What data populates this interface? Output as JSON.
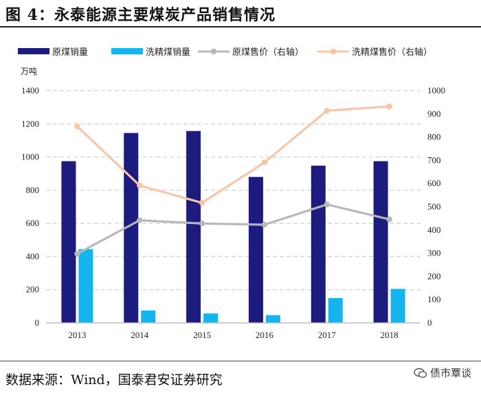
{
  "figure": {
    "title": "图 4：永泰能源主要煤炭产品销售情况",
    "source": "数据来源：Wind，国泰君安证券研究",
    "watermark": "债市覃谈"
  },
  "chart_data": {
    "type": "bar",
    "title": "永泰能源主要煤炭产品销售情况",
    "categories": [
      "2013",
      "2014",
      "2015",
      "2016",
      "2017",
      "2018"
    ],
    "left_axis": {
      "unit_label": "万吨",
      "ylim": [
        0,
        1400
      ],
      "ticks": [
        "0",
        "200",
        "400",
        "600",
        "800",
        "1000",
        "1200",
        "1400"
      ]
    },
    "right_axis": {
      "ylim": [
        0,
        1000
      ],
      "ticks": [
        "0",
        "100",
        "200",
        "300",
        "400",
        "500",
        "600",
        "700",
        "800",
        "900",
        "1000"
      ]
    },
    "grid": "dashed-horizontal",
    "legend_position": "top",
    "series": [
      {
        "name": "原煤销量",
        "kind": "bar",
        "axis": "left",
        "color": "#1c1c7e",
        "values": [
          975,
          1145,
          1157,
          880,
          948,
          975
        ]
      },
      {
        "name": "洗精煤销量",
        "kind": "bar",
        "axis": "left",
        "color": "#16b4ef",
        "values": [
          445,
          75,
          57,
          47,
          150,
          205
        ]
      },
      {
        "name": "原煤售价（右轴）",
        "kind": "line",
        "axis": "right",
        "color": "#b8b8b8",
        "values": [
          298,
          442,
          428,
          423,
          510,
          446
        ]
      },
      {
        "name": "洗精煤售价（右轴）",
        "kind": "line",
        "axis": "right",
        "color": "#f7c6a8",
        "values": [
          846,
          592,
          517,
          691,
          914,
          932
        ]
      }
    ]
  }
}
